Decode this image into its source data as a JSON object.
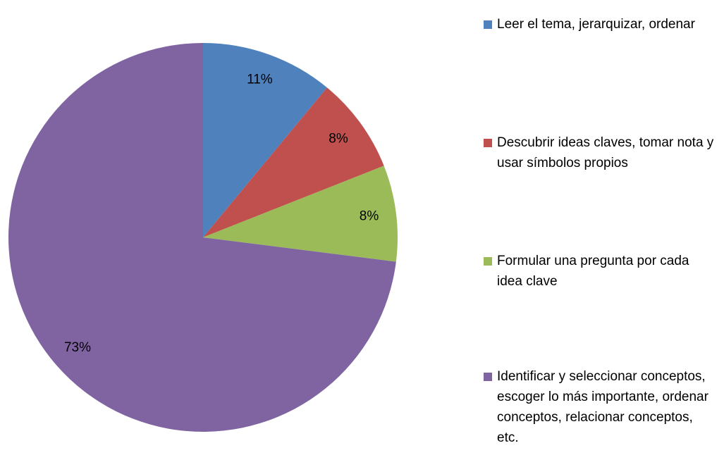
{
  "chart_data": {
    "type": "pie",
    "categories": [
      "Leer el tema, jerarquizar, ordenar",
      "Descubrir ideas claves, tomar nota y usar símbolos propios",
      "Formular una pregunta por cada idea clave",
      "Identificar y seleccionar conceptos, escoger lo más importante, ordenar conceptos, relacionar conceptos, etc."
    ],
    "values": [
      11,
      8,
      8,
      73
    ],
    "value_labels": [
      "11%",
      "8%",
      "8%",
      "73%"
    ],
    "colors": [
      "#4f81bd",
      "#c0504d",
      "#9bbb59",
      "#8064a2"
    ],
    "legend": "right"
  }
}
